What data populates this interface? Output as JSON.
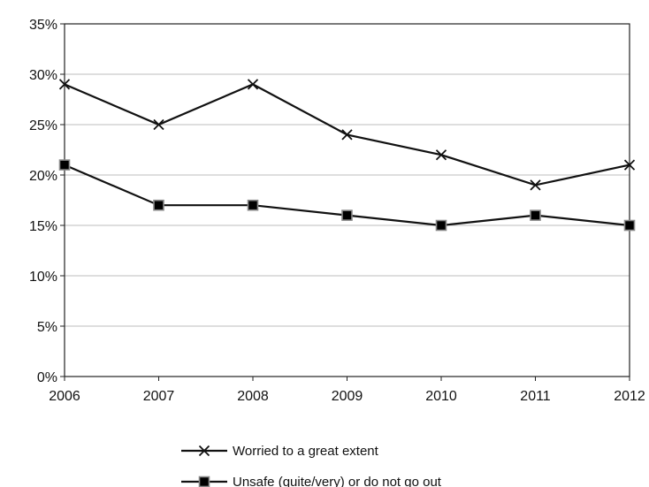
{
  "chart_data": {
    "type": "line",
    "title": "",
    "xlabel": "",
    "ylabel": "",
    "categories": [
      "2006",
      "2007",
      "2008",
      "2009",
      "2010",
      "2011",
      "2012"
    ],
    "ylim": [
      0,
      35
    ],
    "yticks": [
      0,
      5,
      10,
      15,
      20,
      25,
      30,
      35
    ],
    "ytick_labels": [
      "0%",
      "5%",
      "10%",
      "15%",
      "20%",
      "25%",
      "30%",
      "35%"
    ],
    "grid": true,
    "legend_position": "bottom",
    "series": [
      {
        "name": "Worried to a great extent",
        "marker": "x",
        "color": "#111111",
        "values": [
          29,
          25,
          29,
          24,
          22,
          19,
          21
        ]
      },
      {
        "name": "Unsafe (quite/very) or do not go out",
        "marker": "square",
        "color": "#111111",
        "values": [
          21,
          17,
          17,
          16,
          15,
          16,
          15
        ]
      }
    ]
  }
}
